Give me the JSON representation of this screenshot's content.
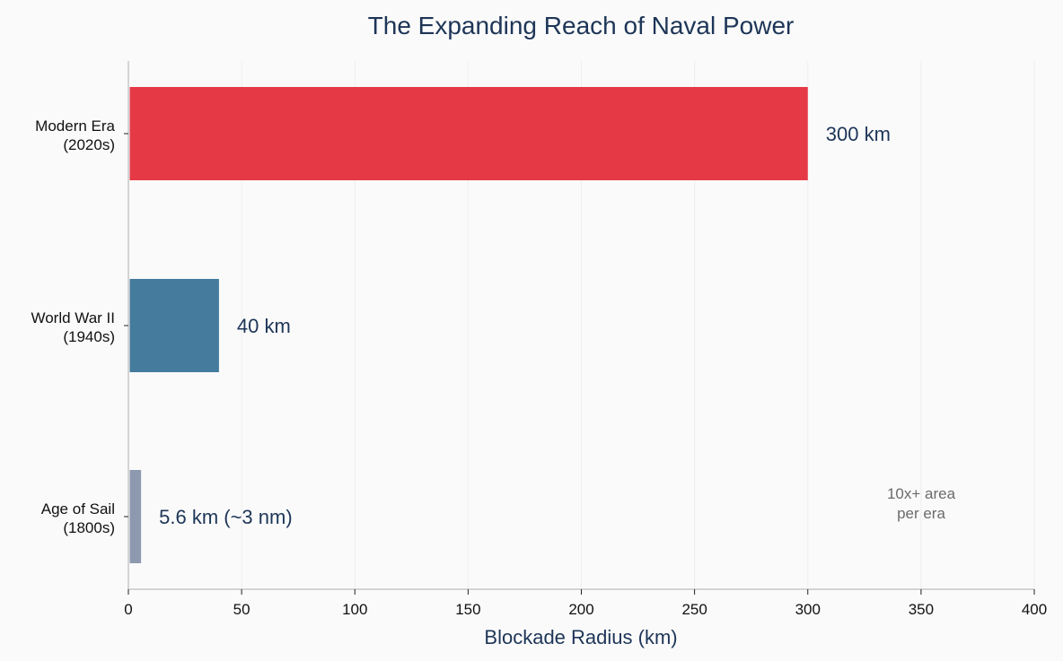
{
  "chart_data": {
    "type": "bar",
    "orientation": "horizontal",
    "title": "The Expanding Reach of Naval Power",
    "xlabel": "Blockade Radius (km)",
    "ylabel": "",
    "xlim": [
      0,
      400
    ],
    "xticks": [
      0,
      50,
      100,
      150,
      200,
      250,
      300,
      350,
      400
    ],
    "grid": "vertical",
    "categories": [
      {
        "line1": "Modern Era",
        "line2": "(2020s)",
        "value": 300,
        "label": "300 km",
        "color": "#e63946"
      },
      {
        "line1": "World War II",
        "line2": "(1940s)",
        "value": 40,
        "label": "40 km",
        "color": "#457b9d"
      },
      {
        "line1": "Age of Sail",
        "line2": "(1800s)",
        "value": 5.6,
        "label": "5.6 km (~3 nm)",
        "color": "#8d99ae"
      }
    ],
    "annotation": {
      "line1": "10x+ area",
      "line2": "per era"
    }
  }
}
